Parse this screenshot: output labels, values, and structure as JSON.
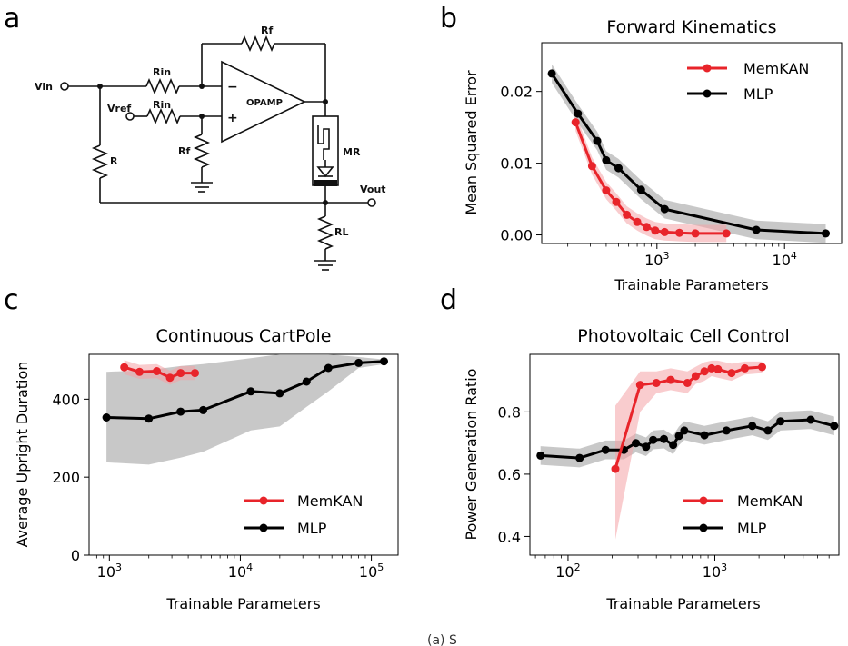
{
  "panel_letters": [
    "a",
    "b",
    "c",
    "d"
  ],
  "circuit": {
    "labels": {
      "vin": "Vin",
      "vref": "Vref",
      "rin1": "Rin",
      "rin2": "Rin",
      "rf_top": "Rf",
      "rf_bottom": "Rf",
      "r": "R",
      "rl": "RL",
      "mr": "MR",
      "opamp": "OPAMP",
      "vout": "Vout",
      "minus": "−",
      "plus": "+"
    }
  },
  "caption_fragment": "(a) S",
  "colors": {
    "memkan": "#e8242a",
    "mlp": "#000000",
    "band_memkan": "#f4a3a5",
    "band_mlp": "#aaaaaa"
  },
  "chart_data": [
    {
      "id": "b",
      "type": "line",
      "title": "Forward Kinematics",
      "xlabel": "Trainable Parameters",
      "ylabel": "Mean Squared Error",
      "xscale": "log",
      "xlim": [
        125,
        28000
      ],
      "ylim": [
        -0.0012,
        0.0268
      ],
      "xticks": [
        {
          "value": 1000,
          "base": "10",
          "exp": "3"
        },
        {
          "value": 10000,
          "base": "10",
          "exp": "4"
        }
      ],
      "yticks": [
        {
          "value": 0.0,
          "label": "0.00"
        },
        {
          "value": 0.01,
          "label": "0.01"
        },
        {
          "value": 0.02,
          "label": "0.02"
        }
      ],
      "legend": {
        "position": "top-right",
        "memkan": "MemKAN",
        "mlp": "MLP"
      },
      "series": [
        {
          "name": "MemKAN",
          "x": [
            230,
            310,
            400,
            480,
            580,
            700,
            830,
            970,
            1150,
            1500,
            2000,
            3500
          ],
          "y": [
            0.0157,
            0.0096,
            0.0062,
            0.0046,
            0.0028,
            0.0018,
            0.0011,
            0.0006,
            0.0004,
            0.0003,
            0.0002,
            0.0002
          ],
          "band": 0.0012
        },
        {
          "name": "MLP",
          "x": [
            150,
            240,
            340,
            400,
            500,
            750,
            1150,
            6000,
            21000
          ],
          "y": [
            0.0225,
            0.0169,
            0.0131,
            0.0104,
            0.0093,
            0.0063,
            0.0036,
            0.0007,
            0.0002
          ],
          "band": 0.0013
        }
      ]
    },
    {
      "id": "c",
      "type": "line",
      "title": "Continuous CartPole",
      "xlabel": "Trainable Parameters",
      "ylabel": "Average Upright Duration",
      "xscale": "log",
      "xlim": [
        700,
        160000
      ],
      "ylim": [
        0,
        515
      ],
      "xticks": [
        {
          "value": 1000,
          "base": "10",
          "exp": "3"
        },
        {
          "value": 10000,
          "base": "10",
          "exp": "4"
        },
        {
          "value": 100000,
          "base": "10",
          "exp": "5"
        }
      ],
      "yticks": [
        {
          "value": 0,
          "label": "0"
        },
        {
          "value": 200,
          "label": "200"
        },
        {
          "value": 400,
          "label": "400"
        }
      ],
      "legend": {
        "position": "lower-right",
        "memkan": "MemKAN",
        "mlp": "MLP"
      },
      "series": [
        {
          "name": "MemKAN",
          "x": [
            1300,
            1700,
            2300,
            2900,
            3500,
            4500
          ],
          "y": [
            482,
            470,
            472,
            455,
            467,
            467
          ],
          "band": 18
        },
        {
          "name": "MLP",
          "x": [
            950,
            2000,
            3500,
            5200,
            12000,
            20000,
            32000,
            47000,
            80000,
            125000
          ],
          "y": [
            353,
            350,
            368,
            372,
            420,
            415,
            445,
            480,
            493,
            497
          ],
          "lower": [
            238,
            232,
            250,
            265,
            320,
            330,
            380,
            420,
            480,
            490
          ],
          "upper": [
            470,
            475,
            485,
            490,
            505,
            515,
            515,
            515,
            508,
            502
          ]
        }
      ]
    },
    {
      "id": "d",
      "type": "line",
      "title": "Photovoltaic Cell Control",
      "xlabel": "Trainable Parameters",
      "ylabel": "Power Generation Ratio",
      "xscale": "log",
      "xlim": [
        55,
        7000
      ],
      "ylim": [
        0.34,
        0.985
      ],
      "xticks": [
        {
          "value": 100,
          "base": "10",
          "exp": "2"
        },
        {
          "value": 1000,
          "base": "10",
          "exp": "3"
        }
      ],
      "yticks": [
        {
          "value": 0.4,
          "label": "0.4"
        },
        {
          "value": 0.6,
          "label": "0.6"
        },
        {
          "value": 0.8,
          "label": "0.8"
        }
      ],
      "legend": {
        "position": "lower-right",
        "memkan": "MemKAN",
        "mlp": "MLP"
      },
      "series": [
        {
          "name": "MemKAN",
          "x": [
            210,
            310,
            400,
            500,
            650,
            740,
            850,
            950,
            1050,
            1300,
            1600,
            2100
          ],
          "y": [
            0.617,
            0.887,
            0.893,
            0.903,
            0.893,
            0.915,
            0.93,
            0.94,
            0.937,
            0.925,
            0.94,
            0.944
          ],
          "lower": [
            0.39,
            0.8,
            0.86,
            0.87,
            0.86,
            0.89,
            0.9,
            0.915,
            0.91,
            0.9,
            0.92,
            0.925
          ],
          "upper": [
            0.82,
            0.93,
            0.93,
            0.94,
            0.93,
            0.945,
            0.96,
            0.965,
            0.965,
            0.955,
            0.962,
            0.962
          ]
        },
        {
          "name": "MLP",
          "x": [
            65,
            120,
            180,
            240,
            290,
            340,
            380,
            450,
            520,
            570,
            620,
            850,
            1200,
            1800,
            2300,
            2800,
            4500,
            6500
          ],
          "y": [
            0.66,
            0.652,
            0.678,
            0.678,
            0.7,
            0.688,
            0.71,
            0.713,
            0.694,
            0.723,
            0.74,
            0.725,
            0.74,
            0.755,
            0.74,
            0.77,
            0.775,
            0.755
          ],
          "band": 0.03
        }
      ]
    }
  ]
}
